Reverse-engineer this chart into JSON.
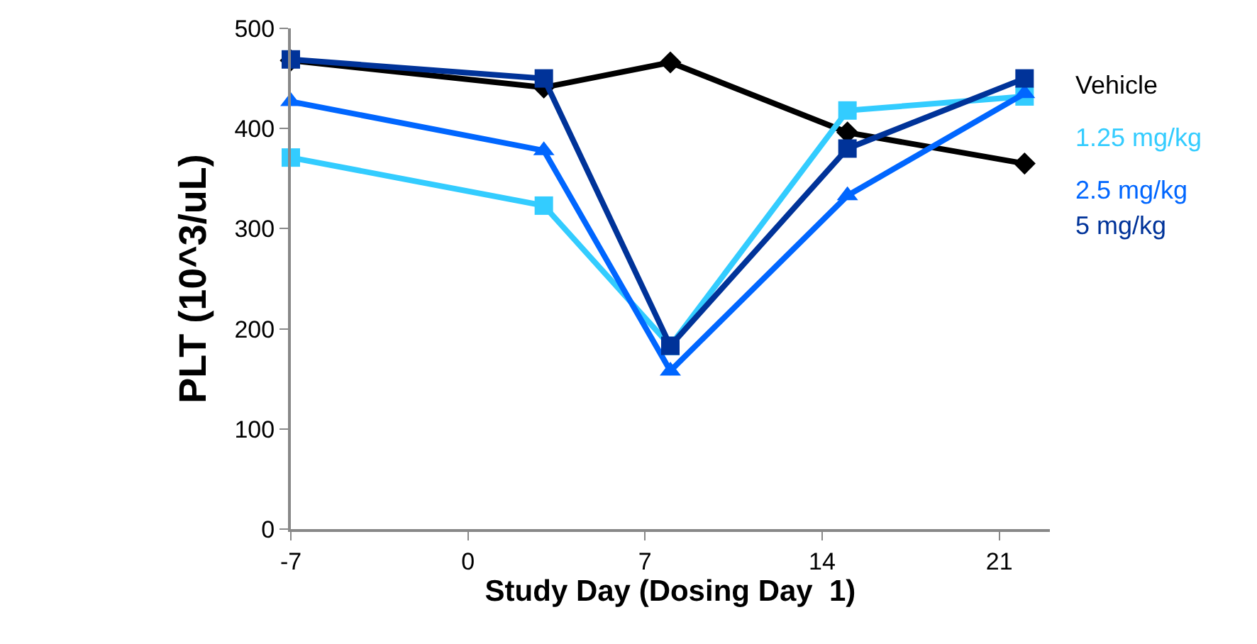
{
  "chart_data": {
    "type": "line",
    "xlabel": "Study Day (Dosing Day  1)",
    "ylabel": "PLT (10^3/uL)",
    "x": [
      -7,
      3,
      8,
      15,
      22
    ],
    "series": [
      {
        "name": "Vehicle",
        "color": "#000000",
        "marker": "diamond",
        "values": [
          468,
          441,
          466,
          396,
          365
        ]
      },
      {
        "name": "1.25 mg/kg",
        "color": "#33ccff",
        "marker": "square",
        "values": [
          371,
          323,
          183,
          418,
          432
        ]
      },
      {
        "name": "2.5 mg/kg",
        "color": "#0066ff",
        "marker": "triangle",
        "values": [
          427,
          378,
          158,
          333,
          435
        ]
      },
      {
        "name": "5 mg/kg",
        "color": "#003399",
        "marker": "square",
        "values": [
          469,
          450,
          183,
          380,
          450
        ]
      }
    ],
    "xlim": [
      -7,
      23
    ],
    "xticks": [
      -7,
      0,
      7,
      14,
      21
    ],
    "ylim": [
      0,
      500
    ],
    "yticks": [
      0,
      100,
      200,
      300,
      400,
      500
    ],
    "legend": "right",
    "line_style": "solid"
  }
}
